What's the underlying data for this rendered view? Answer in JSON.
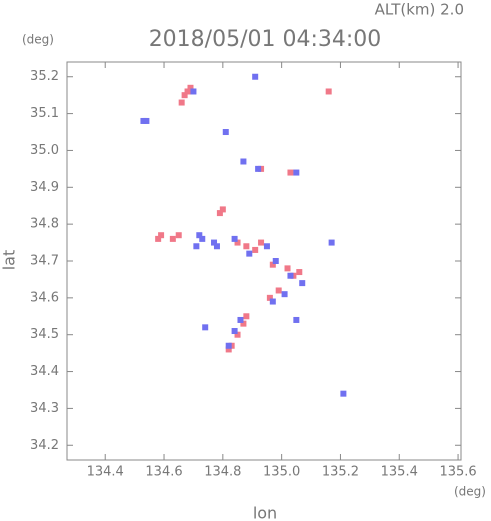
{
  "chart_data": {
    "type": "scatter",
    "title": "2018/05/01 04:34:00",
    "annotation": "ALT(km) 2.0",
    "x_label": "lon",
    "y_label": "lat",
    "x_unit": "(deg)",
    "y_unit": "(deg)",
    "xlim": [
      134.27,
      135.61
    ],
    "ylim": [
      34.16,
      35.24
    ],
    "xticks": [
      134.4,
      134.6,
      134.8,
      {
        "value": 135,
        "label": "135.0"
      },
      135.2,
      135.4,
      135.6
    ],
    "yticks": [
      34.2,
      34.3,
      34.4,
      34.5,
      34.6,
      34.7,
      34.8,
      34.9,
      {
        "value": 35,
        "label": "35.0"
      },
      35.1,
      35.2
    ],
    "grid": false,
    "series": [
      {
        "color": "#f07888",
        "x": [
          134.66,
          134.67,
          134.68,
          134.69,
          134.58,
          134.59,
          134.63,
          134.65,
          134.79,
          134.8,
          134.85,
          134.88,
          134.91,
          134.93,
          134.97,
          135.02,
          135.04,
          135.06,
          134.99,
          134.96,
          134.87,
          134.88,
          134.85,
          134.82,
          134.83,
          135.16,
          134.93,
          135.03
        ],
        "y": [
          35.13,
          35.15,
          35.16,
          35.17,
          34.76,
          34.77,
          34.76,
          34.77,
          34.83,
          34.84,
          34.75,
          34.74,
          34.73,
          34.75,
          34.69,
          34.68,
          34.66,
          34.67,
          34.62,
          34.6,
          34.53,
          34.55,
          34.5,
          34.46,
          34.47,
          35.16,
          34.95,
          34.94
        ]
      },
      {
        "color": "#7070f0",
        "x": [
          134.53,
          134.54,
          134.7,
          134.81,
          134.91,
          134.87,
          134.92,
          135.05,
          134.72,
          134.73,
          134.77,
          134.78,
          134.84,
          134.89,
          134.95,
          134.98,
          135.03,
          135.07,
          135.01,
          134.97,
          134.86,
          134.84,
          134.74,
          134.82,
          135.21,
          135.05,
          134.71,
          135.17
        ],
        "y": [
          35.08,
          35.08,
          35.16,
          35.05,
          35.2,
          34.97,
          34.95,
          34.94,
          34.77,
          34.76,
          34.75,
          34.74,
          34.76,
          34.72,
          34.74,
          34.7,
          34.66,
          34.64,
          34.61,
          34.59,
          34.54,
          34.51,
          34.52,
          34.47,
          34.34,
          34.54,
          34.74,
          34.75
        ]
      }
    ]
  }
}
